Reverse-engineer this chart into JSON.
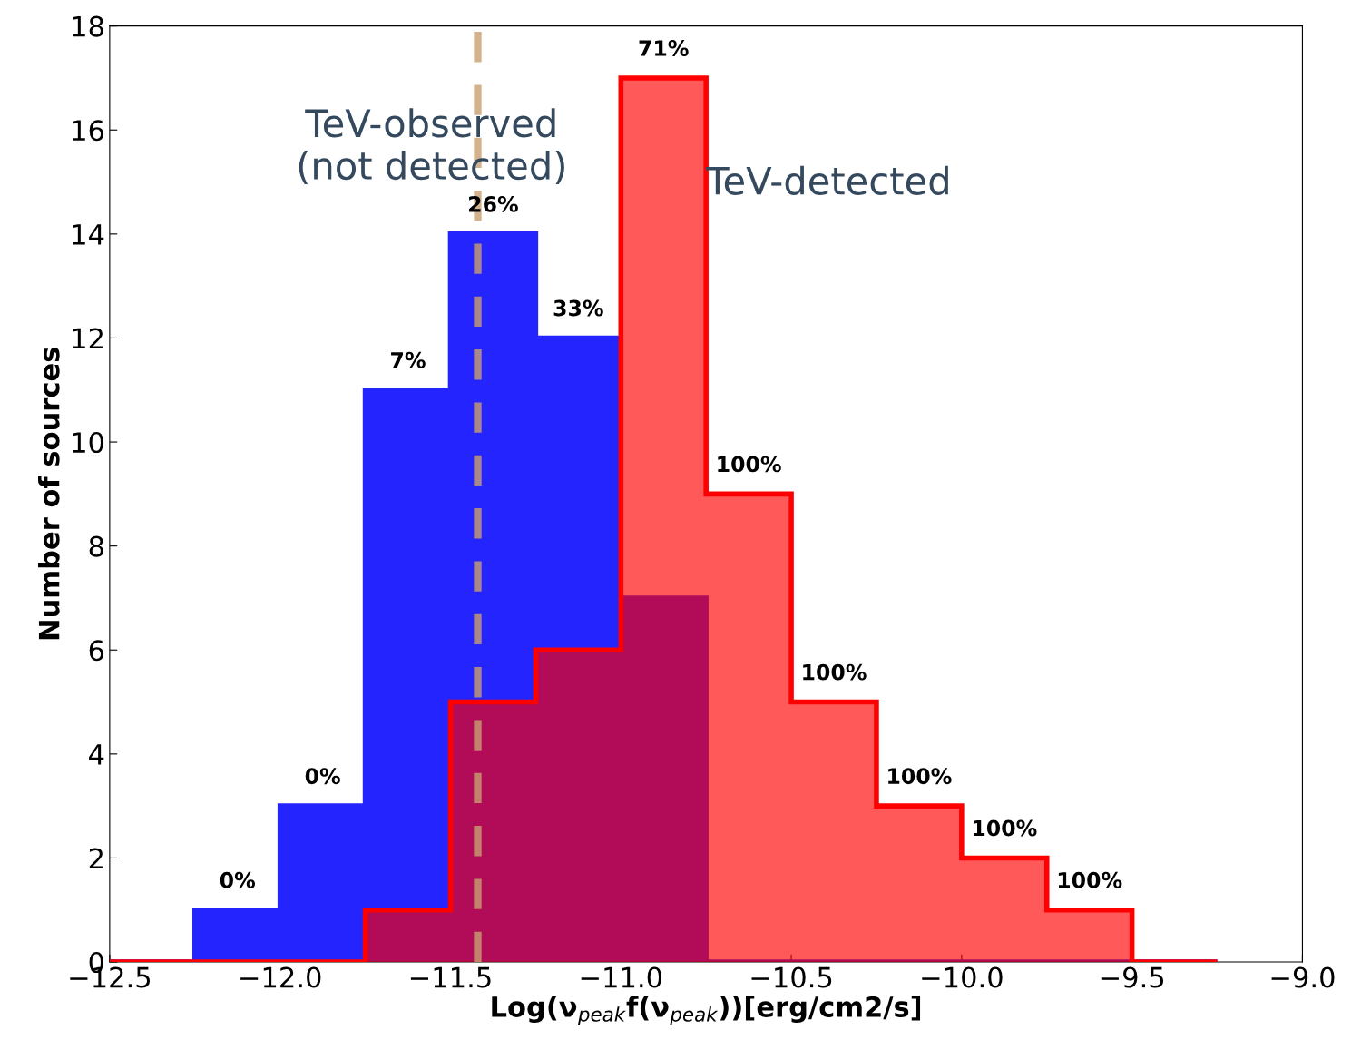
{
  "chart_data": {
    "type": "histogram",
    "xlabel": "Log(ν$_{peak}$f(ν$_{peak}$))[erg/cm2/s]",
    "ylabel": "Number of sources",
    "bins": [
      -12.5,
      -12.25,
      -12.0,
      -11.75,
      -11.5,
      -11.25,
      -11.0,
      -10.75,
      -10.5,
      -10.25,
      -10.0,
      -9.75,
      -9.5,
      -9.25
    ],
    "series": [
      {
        "name": "TeV-observed\n(not detected)",
        "color": "#2424ff",
        "values": [
          0,
          1,
          3,
          11,
          14,
          12,
          7,
          0,
          0,
          0,
          0,
          0,
          0
        ]
      },
      {
        "name": "TeV-detected",
        "color": "#ff0000",
        "values": [
          0,
          0,
          0,
          1,
          5,
          6,
          17,
          9,
          5,
          3,
          2,
          1,
          0
        ]
      }
    ],
    "xlim": [
      -12.5,
      -9.0
    ],
    "xticks": [
      -12.5,
      {
        "value": -12,
        "label": "−12.0"
      },
      -11.5,
      {
        "value": -11,
        "label": "−11.0"
      },
      -10.5,
      {
        "value": -10,
        "label": "−10.0"
      },
      -9.5,
      {
        "value": -9,
        "label": "−9.0"
      }
    ],
    "ylim": [
      0,
      18
    ],
    "yticks": [
      0,
      2,
      4,
      6,
      8,
      10,
      12,
      14,
      16,
      18
    ],
    "ref_lines": [
      {
        "axis": "x",
        "value": -11.42,
        "color": "#c8a070",
        "line_style": "dashed"
      }
    ],
    "annotations": [
      {
        "text": "0%",
        "x": -12.125,
        "y": 1
      },
      {
        "text": "0%",
        "x": -11.875,
        "y": 3
      },
      {
        "text": "7%",
        "x": -11.625,
        "y": 11
      },
      {
        "text": "26%",
        "x": -11.375,
        "y": 14
      },
      {
        "text": "33%",
        "x": -11.125,
        "y": 12
      },
      {
        "text": "71%",
        "x": -10.875,
        "y": 17
      },
      {
        "text": "100%",
        "x": -10.625,
        "y": 9
      },
      {
        "text": "100%",
        "x": -10.375,
        "y": 5
      },
      {
        "text": "100%",
        "x": -10.125,
        "y": 3
      },
      {
        "text": "100%",
        "x": -9.875,
        "y": 2
      },
      {
        "text": "100%",
        "x": -9.625,
        "y": 1
      }
    ],
    "grid": false,
    "legend": false
  }
}
